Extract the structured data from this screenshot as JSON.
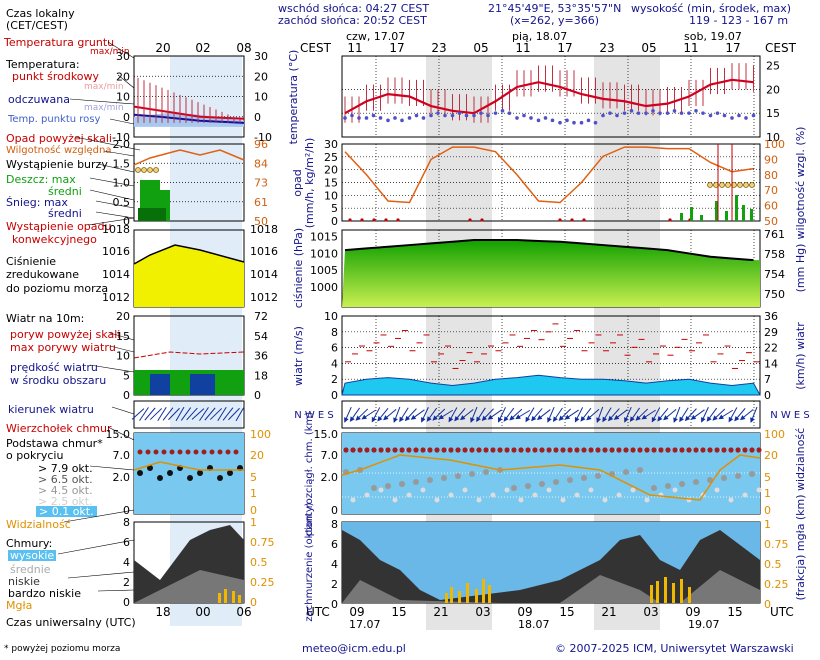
{
  "header": {
    "sunrise": "wschód słońca: 04:27 CEST",
    "sunset": "zachód słońca: 20:52 CEST",
    "coords": "21°45'49\"E, 53°35'57\"N",
    "grid": "(x=262, y=366)",
    "altitude_label": "wysokość (min, środek, max)",
    "altitude_values": "119 - 123 - 167 m"
  },
  "legend": {
    "local_time": "Czas lokalny",
    "local_time_zone": "(CET/CEST)",
    "soil_temp": "Temperatura gruntu",
    "soil_temp_minmax": "max/min",
    "temperature": "Temperatura:",
    "mid_point": "punkt środkowy",
    "max_min": "max/min",
    "feels_like": "odczuwana",
    "max_min2": "max/min",
    "dew_point": "Temp. punktu rosy",
    "precip_over_scale": "Opad powyżej skali",
    "rel_humidity": "Wilgotność względna",
    "storm": "Wystąpienie burzy",
    "rain_max": "Deszcz: max",
    "rain_mid": "średni",
    "snow_max": "Śnieg:   max",
    "snow_mid": "średni",
    "convective_1": "Wystąpienie opadu",
    "convective_2": "konwekcyjnego",
    "pressure_1": "Ciśnienie",
    "pressure_2": "zredukowane",
    "pressure_3": "do poziomu morza",
    "wind_title": "Wiatr na 10m:",
    "gust_over": "poryw powyżej skali",
    "gust_max": "max porywy wiatru",
    "wind_speed_1": "prędkość wiatru",
    "wind_speed_2": "w środku obszaru",
    "wind_dir": "kierunek wiatru",
    "cb_top": "Wierzchołek chmur",
    "cloud_base_1": "Podstawa chmur*",
    "cloud_base_2": "o pokryciu",
    "okt_79": "> 7.9 okt.",
    "okt_65": "> 6.5 okt.",
    "okt_45": "> 4.5 okt.",
    "okt_25": "> 2.5 okt.",
    "okt_01": "> 0.1 okt.",
    "visibility": "Widzialność",
    "clouds": "Chmury:",
    "high": "wysokie",
    "medium": "średnie",
    "low": "niskie",
    "very_low": "bardzo niskie",
    "fog": "Mgła",
    "utc_label": "Czas uniwersalny (UTC)",
    "footnote": "* powyżej poziomu morza"
  },
  "left_axes": {
    "top_ticks": [
      "20",
      "02",
      "08"
    ],
    "bottom_ticks": [
      "18",
      "00",
      "06"
    ],
    "temp_ticks": [
      "30",
      "20",
      "10",
      "0",
      "-10"
    ],
    "precip_ticks": [
      "2.0",
      "1.5",
      "1.0",
      "0.5",
      "0"
    ],
    "humidity_ticks": [
      "96",
      "84",
      "73",
      "61",
      "50"
    ],
    "pressure_ticks": [
      "1018",
      "1016",
      "1014",
      "1012"
    ],
    "wind_ticks": [
      "20",
      "15",
      "10",
      "5",
      "0"
    ],
    "wind_kmh_ticks": [
      "72",
      "54",
      "36",
      "18",
      "0"
    ],
    "cloudbase_ticks": [
      "15.0",
      "7.0",
      "2.0",
      "0"
    ],
    "vis_ticks": [
      "100",
      "20",
      "5",
      "1",
      "0"
    ],
    "cloud_ticks": [
      "8",
      "6",
      "4",
      "2",
      "0"
    ],
    "cloud_frac_ticks": [
      "1",
      "0.75",
      "0.5",
      "0.25",
      "0"
    ]
  },
  "main_axes": {
    "cest": "CEST",
    "utc": "UTC",
    "days_top": [
      "czw, 17.07",
      "pią, 18.07",
      "sob, 19.07"
    ],
    "hours_top": [
      "11",
      "17",
      "23",
      "05",
      "11",
      "17",
      "23",
      "05",
      "11",
      "17"
    ],
    "hours_bottom": [
      "09",
      "15",
      "21",
      "03",
      "09",
      "15",
      "21",
      "03",
      "09",
      "15"
    ],
    "days_bottom": [
      "17.07",
      "18.07",
      "19.07"
    ],
    "temp_ticks": [
      "25",
      "20",
      "15",
      "10"
    ],
    "temp_label": "temperatura (°C)",
    "precip_ticks": [
      "30",
      "25",
      "20",
      "15",
      "10",
      "5",
      "0"
    ],
    "precip_label_1": "opad",
    "precip_label_2": "(mm/h, kg/m²/h)",
    "humidity_ticks": [
      "100",
      "90",
      "80",
      "70",
      "60",
      "50"
    ],
    "humidity_label": "wilgotność wzgl. (%)",
    "pressure_ticks": [
      "1015",
      "1010",
      "1005",
      "1000"
    ],
    "pressure_mmhg_ticks": [
      "761",
      "758",
      "754",
      "750"
    ],
    "pressure_label": "ciśnienie (hPa)",
    "pressure_mmhg_label": "(mm Hg)",
    "wind_ticks": [
      "10",
      "8",
      "6",
      "4",
      "2",
      "0"
    ],
    "wind_kmh_ticks": [
      "36",
      "29",
      "22",
      "14",
      "7",
      "0"
    ],
    "wind_label": "wiatr (m/s)",
    "wind_kmh_label": "(km/h) wiatr",
    "compass": "N W E S",
    "cloud_ticks": [
      "15.0",
      "7.0",
      "2.0",
      "0"
    ],
    "vis_ticks": [
      "100",
      "20",
      "5",
      "1",
      "0"
    ],
    "cloud_label": "pion. rozciągł. chm. (km)",
    "vis_label": "(km) widzialność",
    "cover_ticks": [
      "8",
      "6",
      "4",
      "2",
      "0"
    ],
    "cover_frac_ticks": [
      "1",
      "0.75",
      "0.5",
      "0.25",
      "0"
    ],
    "cover_label": "zachmurzenie (oktanty)",
    "fog_label": "(frakcja) mgła"
  },
  "footer": {
    "email": "meteo@icm.edu.pl",
    "copyright": "© 2007-2025 ICM, Uniwersytet Warszawski"
  },
  "colors": {
    "temperature": "#d00020",
    "dew_point": "#5050c8",
    "humidity": "#e06010",
    "pressure_fill": "#40c000",
    "wind_fill": "#1ec8f0",
    "night_band": "#e0e0e0",
    "cloud_bg": "#78c8f0",
    "navy_text": "#14148c",
    "red_text": "#c80000"
  },
  "chart_data": [
    {
      "type": "line",
      "title": "temperatura",
      "ylabel": "temperatura (°C)",
      "ylim": [
        10,
        27
      ],
      "x_hours_cest": [
        11,
        14,
        17,
        20,
        23,
        2,
        5,
        8,
        11,
        14,
        17,
        20,
        23,
        2,
        5,
        8,
        11,
        14,
        17,
        19
      ],
      "series": [
        {
          "values": [
            15,
            17.5,
            19,
            18.5,
            16.5,
            15.5,
            15,
            17.5,
            20.5,
            21.5,
            20.5,
            19,
            18,
            17.5,
            16.5,
            17,
            18.5,
            21,
            22,
            21.5
          ]
        },
        {
          "values": [
            14,
            14,
            13.5,
            14,
            14.5,
            14.5,
            14.5,
            15,
            14,
            13.5,
            13,
            13,
            14.5,
            15,
            15,
            15,
            15,
            14.5,
            14,
            14.5
          ]
        }
      ]
    },
    {
      "type": "line",
      "title": "wilgotność wzgl.",
      "ylabel": "wilgotność wzgl. (%)",
      "ylim": [
        50,
        100
      ],
      "x_hours_cest": [
        11,
        14,
        17,
        20,
        23,
        2,
        5,
        8,
        11,
        14,
        17,
        20,
        23,
        2,
        5,
        8,
        11,
        14,
        17,
        19
      ],
      "values": [
        95,
        80,
        63,
        62,
        90,
        98,
        98,
        95,
        80,
        63,
        62,
        75,
        92,
        98,
        98,
        97,
        97,
        88,
        82,
        84
      ]
    },
    {
      "type": "area",
      "title": "ciśnienie",
      "ylabel": "ciśnienie (hPa)",
      "ylim": [
        994,
        1017
      ],
      "x_hours_cest": [
        11,
        14,
        17,
        20,
        23,
        2,
        5,
        8,
        11,
        14,
        17,
        20,
        23,
        2,
        5,
        8,
        11,
        14,
        17,
        19
      ],
      "values": [
        1011,
        1011.5,
        1012,
        1012.5,
        1013,
        1013.5,
        1014,
        1014,
        1014,
        1013.7,
        1013.5,
        1013,
        1012.5,
        1012,
        1011.5,
        1011,
        1010,
        1009,
        1008.5,
        1008
      ]
    },
    {
      "type": "area",
      "title": "wiatr",
      "ylabel": "wiatr (m/s)",
      "ylim": [
        0,
        10
      ],
      "x_hours_cest": [
        11,
        14,
        17,
        20,
        23,
        2,
        5,
        8,
        11,
        14,
        17,
        20,
        23,
        2,
        5,
        8,
        11,
        14,
        17,
        19
      ],
      "values": [
        1.5,
        2,
        2.2,
        2,
        1.5,
        1.2,
        1.5,
        2,
        2.2,
        2.5,
        2.2,
        2,
        2,
        1.8,
        1.5,
        1.8,
        2,
        1.5,
        1.2,
        1.5
      ]
    }
  ]
}
